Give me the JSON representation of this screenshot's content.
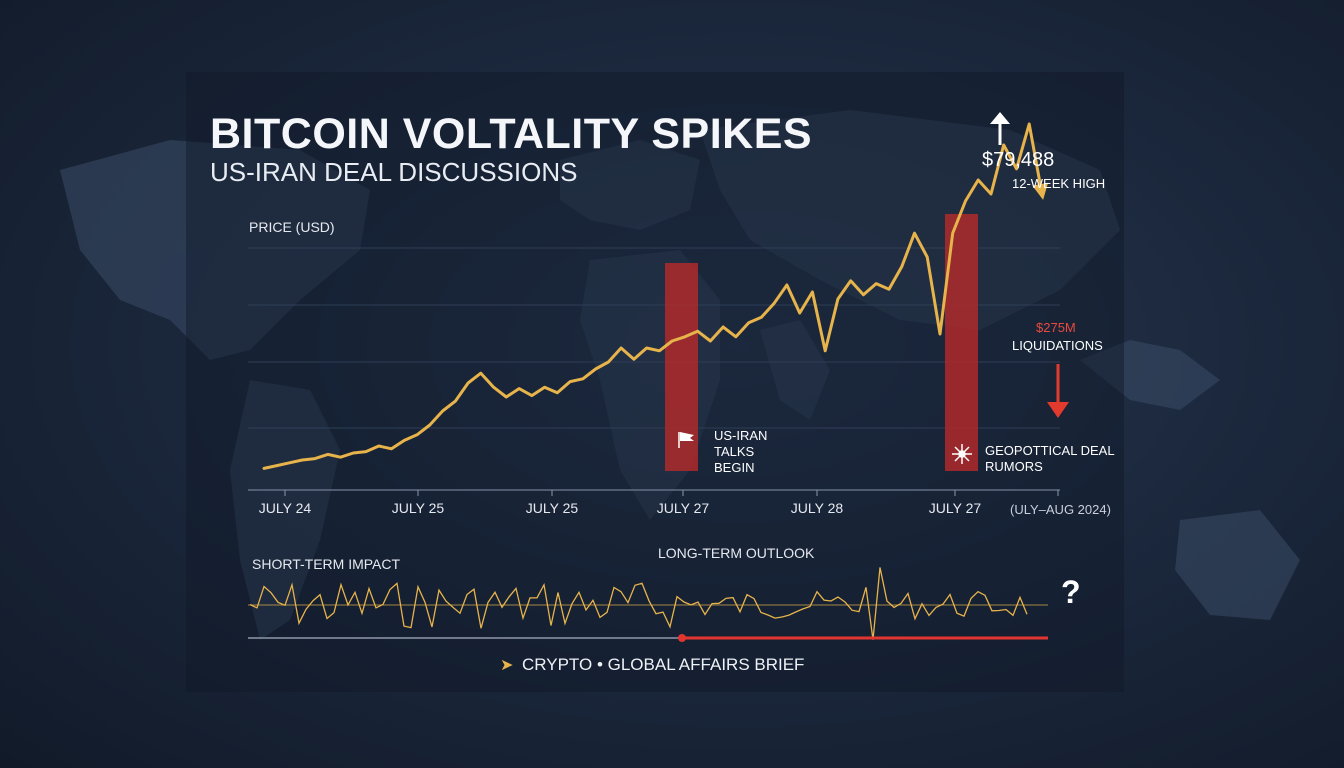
{
  "chart_data": {
    "type": "line",
    "title": "BITCOIN VOLTALITY SPIKES",
    "subtitle": "US-IRAN DEAL DISCUSSIONS",
    "ylabel": "PRICE (USD)",
    "x_tick_labels": [
      "JULY 24",
      "JULY 25",
      "JULY 25",
      "JULY 27",
      "JULY 28",
      "JULY 27"
    ],
    "date_range_label": "(ULY–AUG 2024)",
    "series": [
      {
        "values": [
          0.04,
          0.06,
          0.08,
          0.1,
          0.11,
          0.14,
          0.12,
          0.15,
          0.16,
          0.2,
          0.18,
          0.24,
          0.28,
          0.35,
          0.45,
          0.52,
          0.65,
          0.72,
          0.62,
          0.55,
          0.61,
          0.56,
          0.62,
          0.58,
          0.66,
          0.68,
          0.75,
          0.8,
          0.9,
          0.82,
          0.9,
          0.88,
          0.95,
          0.98,
          1.02,
          0.95,
          1.05,
          0.98,
          1.08,
          1.12,
          1.22,
          1.35,
          1.15,
          1.3,
          0.88,
          1.25,
          1.38,
          1.28,
          1.36,
          1.32,
          1.48,
          1.72,
          1.55,
          1.0,
          1.72,
          1.95,
          2.1,
          2.0,
          2.35,
          2.18,
          2.5,
          2.0
        ]
      }
    ],
    "annotations": {
      "high_price": "$79,488",
      "high_label": "12-WEEK HIGH",
      "liquidation_amount": "$275M",
      "liquidation_label": "LIQUIDATIONS",
      "event1_lines": [
        "US-IRAN",
        "TALKS",
        "BEGIN"
      ],
      "event2_lines": [
        "GEOPOTTICAL DEAL",
        "RUMORS"
      ]
    },
    "impact_labels": {
      "short_term": "SHORT-TERM IMPACT",
      "long_term": "LONG-TERM OUTLOOK",
      "question_mark": "?"
    },
    "colors": {
      "line": "#e7b34b",
      "event_bar": "#b52a2a",
      "down_arrow": "#e23b2e",
      "timeline_red": "#e2352f"
    }
  },
  "footer": {
    "brand": "CRYPTO • GLOBAL AFFAIRS BRIEF",
    "brand_icon": "chevron-right-icon"
  }
}
